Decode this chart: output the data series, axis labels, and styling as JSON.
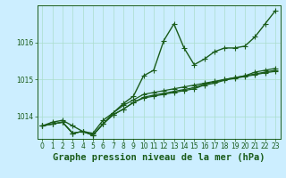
{
  "title": "Graphe pression niveau de la mer (hPa)",
  "bg_color": "#cceeff",
  "grid_color": "#aaddcc",
  "line_color": "#1a5c1a",
  "xlim": [
    -0.5,
    23.5
  ],
  "ylim": [
    1013.4,
    1017.0
  ],
  "yticks": [
    1014,
    1015,
    1016
  ],
  "xticks": [
    0,
    1,
    2,
    3,
    4,
    5,
    6,
    7,
    8,
    9,
    10,
    11,
    12,
    13,
    14,
    15,
    16,
    17,
    18,
    19,
    20,
    21,
    22,
    23
  ],
  "series": [
    [
      1013.75,
      1013.85,
      1013.9,
      1013.75,
      1013.6,
      1013.55,
      1013.9,
      1014.1,
      1014.35,
      1014.55,
      1015.1,
      1015.25,
      1016.05,
      1016.5,
      1015.85,
      1015.4,
      1015.55,
      1015.75,
      1015.85,
      1015.85,
      1015.9,
      1016.15,
      1016.5,
      1016.85
    ],
    [
      1013.75,
      1013.8,
      1013.85,
      1013.55,
      1013.6,
      1013.5,
      1013.8,
      1014.1,
      1014.3,
      1014.45,
      1014.6,
      1014.65,
      1014.7,
      1014.75,
      1014.8,
      1014.85,
      1014.9,
      1014.95,
      1015.0,
      1015.05,
      1015.1,
      1015.2,
      1015.25,
      1015.3
    ],
    [
      1013.75,
      1013.8,
      1013.85,
      1013.55,
      1013.6,
      1013.5,
      1013.8,
      1014.05,
      1014.2,
      1014.38,
      1014.52,
      1014.58,
      1014.63,
      1014.68,
      1014.73,
      1014.78,
      1014.88,
      1014.93,
      1015.0,
      1015.05,
      1015.1,
      1015.15,
      1015.2,
      1015.25
    ],
    [
      1013.75,
      1013.8,
      1013.85,
      1013.55,
      1013.6,
      1013.5,
      1013.8,
      1014.05,
      1014.2,
      1014.38,
      1014.5,
      1014.55,
      1014.6,
      1014.65,
      1014.7,
      1014.75,
      1014.85,
      1014.9,
      1014.98,
      1015.03,
      1015.08,
      1015.13,
      1015.18,
      1015.22
    ]
  ],
  "markers": [
    "+",
    "+",
    "+",
    "+"
  ],
  "markersizes": [
    5,
    4,
    4,
    4
  ],
  "linewidths": [
    1.0,
    0.9,
    0.9,
    0.9
  ],
  "title_fontsize": 7.5,
  "tick_fontsize": 5.5,
  "title_color": "#1a5c1a",
  "tick_color": "#1a5c1a",
  "axis_color": "#1a5c1a"
}
